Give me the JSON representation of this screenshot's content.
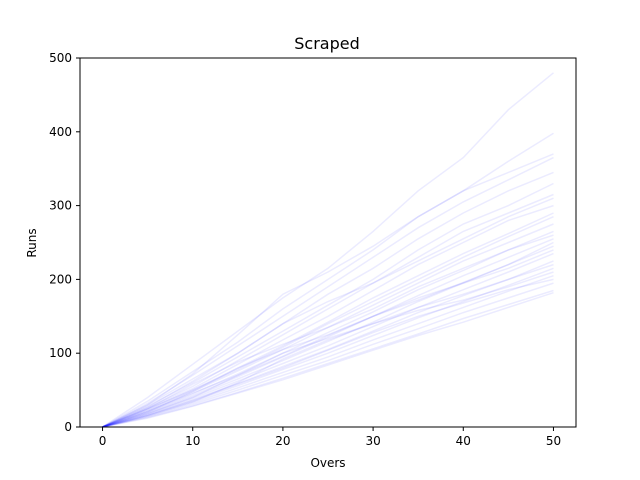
{
  "chart_data": {
    "type": "line",
    "title": "Scraped",
    "xlabel": "Overs",
    "ylabel": "Runs",
    "xlim": [
      -2.5,
      52.5
    ],
    "ylim": [
      0,
      500
    ],
    "xticks": [
      0,
      10,
      20,
      30,
      40,
      50
    ],
    "yticks": [
      0,
      100,
      200,
      300,
      400,
      500
    ],
    "grid": false,
    "legend": "none",
    "series_color": "#0000ff",
    "x": [
      0,
      5,
      10,
      15,
      20,
      25,
      30,
      35,
      40,
      45,
      50
    ],
    "series": [
      {
        "values": [
          0,
          40,
          85,
          130,
          175,
          215,
          265,
          320,
          365,
          430,
          480
        ]
      },
      {
        "values": [
          0,
          30,
          72,
          125,
          180,
          210,
          245,
          285,
          320,
          360,
          398
        ]
      },
      {
        "values": [
          0,
          35,
          75,
          115,
          160,
          200,
          240,
          285,
          320,
          345,
          370
        ]
      },
      {
        "values": [
          0,
          32,
          70,
          110,
          150,
          190,
          230,
          270,
          305,
          335,
          365
        ]
      },
      {
        "values": [
          0,
          30,
          65,
          100,
          140,
          180,
          215,
          255,
          290,
          320,
          345
        ]
      },
      {
        "values": [
          0,
          28,
          60,
          95,
          130,
          165,
          200,
          240,
          275,
          300,
          330
        ]
      },
      {
        "values": [
          0,
          26,
          55,
          90,
          125,
          160,
          195,
          230,
          265,
          290,
          315
        ]
      },
      {
        "values": [
          0,
          25,
          52,
          85,
          118,
          150,
          185,
          220,
          250,
          280,
          300
        ]
      },
      {
        "values": [
          0,
          24,
          50,
          80,
          110,
          142,
          175,
          205,
          235,
          262,
          290
        ]
      },
      {
        "values": [
          0,
          22,
          48,
          76,
          105,
          135,
          165,
          195,
          225,
          250,
          275
        ]
      },
      {
        "values": [
          0,
          21,
          45,
          72,
          100,
          128,
          156,
          186,
          212,
          240,
          265
        ]
      },
      {
        "values": [
          0,
          20,
          43,
          68,
          95,
          122,
          150,
          178,
          205,
          230,
          255
        ]
      },
      {
        "values": [
          0,
          19,
          41,
          65,
          90,
          116,
          142,
          170,
          195,
          220,
          245
        ]
      },
      {
        "values": [
          0,
          18,
          39,
          62,
          86,
          110,
          136,
          162,
          186,
          210,
          235
        ]
      },
      {
        "values": [
          0,
          17,
          37,
          59,
          82,
          105,
          130,
          155,
          178,
          200,
          225
        ]
      },
      {
        "values": [
          0,
          16,
          35,
          56,
          78,
          100,
          124,
          148,
          170,
          192,
          215
        ]
      },
      {
        "values": [
          0,
          15,
          33,
          53,
          74,
          95,
          118,
          140,
          162,
          184,
          205
        ]
      },
      {
        "values": [
          0,
          14,
          31,
          50,
          70,
          90,
          112,
          133,
          155,
          175,
          195
        ]
      },
      {
        "values": [
          0,
          13,
          29,
          47,
          66,
          86,
          106,
          126,
          147,
          166,
          185
        ]
      },
      {
        "values": [
          0,
          15,
          34,
          60,
          92,
          118,
          140,
          162,
          180,
          200,
          220
        ]
      },
      {
        "values": [
          0,
          20,
          48,
          80,
          105,
          125,
          150,
          175,
          195,
          215,
          240
        ]
      },
      {
        "values": [
          0,
          25,
          58,
          88,
          112,
          135,
          160,
          190,
          215,
          240,
          260
        ]
      },
      {
        "values": [
          0,
          18,
          40,
          70,
          100,
          120,
          140,
          158,
          172,
          190,
          210
        ]
      },
      {
        "values": [
          0,
          22,
          46,
          70,
          96,
          124,
          150,
          172,
          196,
          220,
          250
        ]
      },
      {
        "values": [
          0,
          16,
          36,
          58,
          80,
          104,
          128,
          150,
          168,
          186,
          200
        ]
      },
      {
        "values": [
          0,
          27,
          62,
          100,
          140,
          170,
          195,
          225,
          255,
          285,
          310
        ]
      },
      {
        "values": [
          0,
          12,
          28,
          46,
          64,
          84,
          104,
          124,
          142,
          162,
          182
        ]
      },
      {
        "values": [
          0,
          24,
          50,
          78,
          108,
          140,
          170,
          200,
          230,
          258,
          285
        ]
      }
    ]
  }
}
